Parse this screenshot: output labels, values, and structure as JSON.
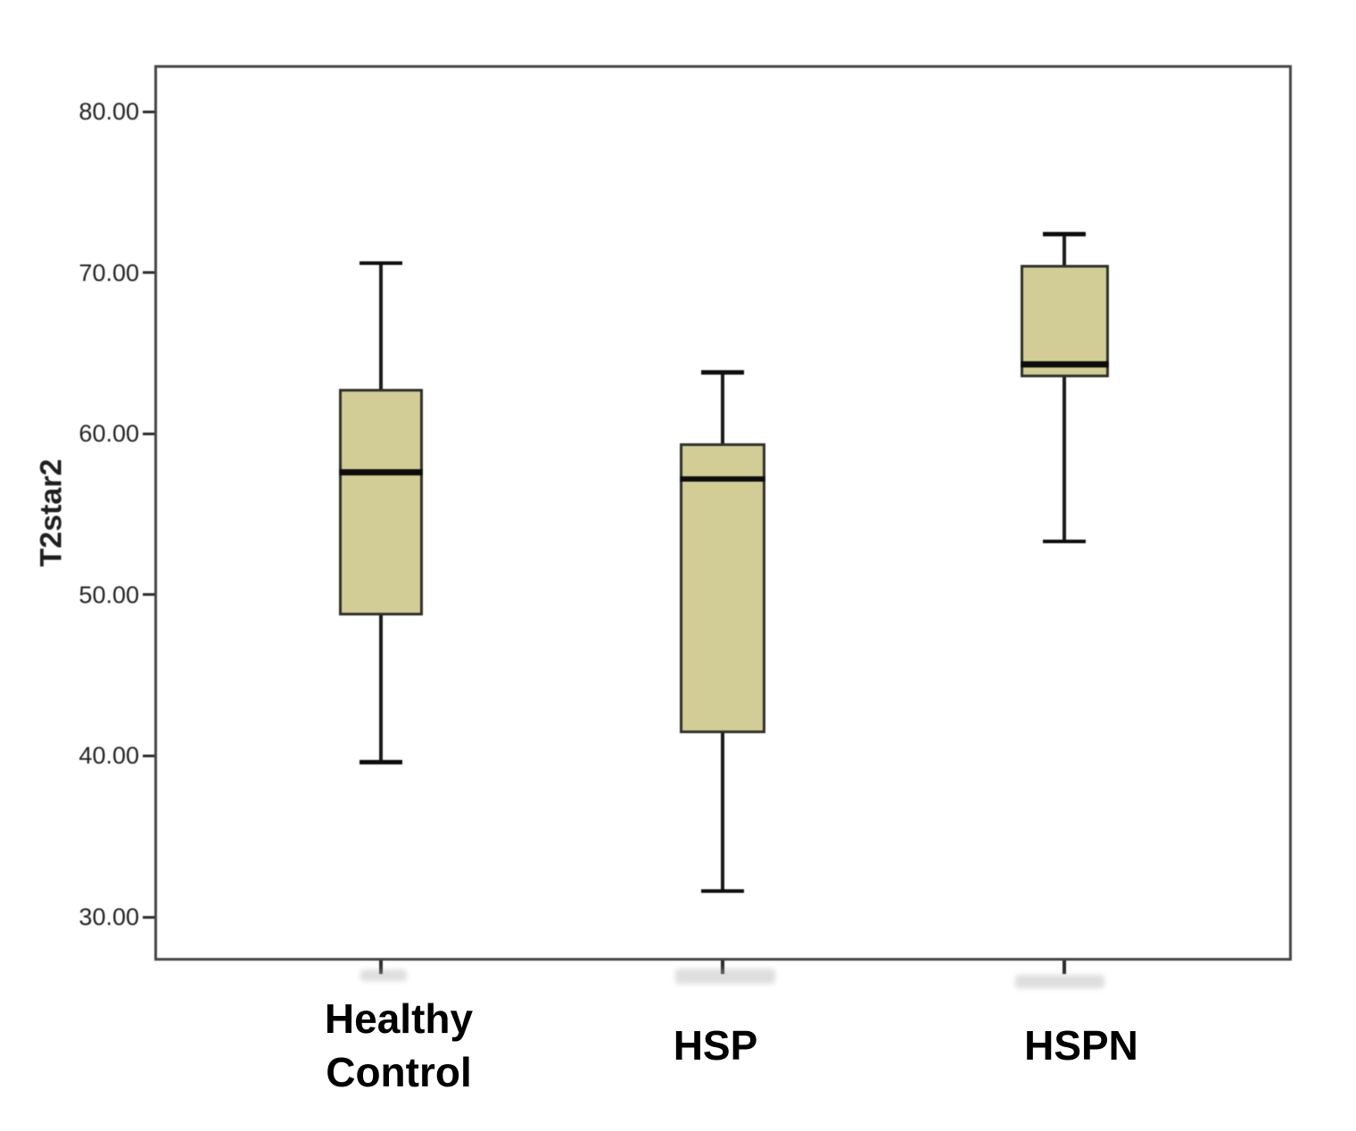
{
  "figure": {
    "background_color": "#ffffff",
    "frame_border_color": "#454545"
  },
  "chart_data": {
    "type": "boxplot",
    "title": "",
    "xlabel": "",
    "ylabel": "T2star2",
    "grid": "off",
    "legend": "none",
    "y_axis": {
      "tick_labels": [
        "80.00",
        "70.00",
        "60.00",
        "50.00",
        "40.00",
        "30.00"
      ],
      "tick_values": [
        80,
        70,
        60,
        50,
        40,
        30
      ],
      "range": [
        27.3,
        83.4
      ]
    },
    "categories": [
      "Healthy Control",
      "HSP",
      "HSPN"
    ],
    "series": [
      {
        "label_lines": [
          "Healthy",
          "Control"
        ],
        "whisker_low": 39.6,
        "q1": 48.7,
        "median": 57.6,
        "q3": 62.8,
        "whisker_high": 70.6
      },
      {
        "label_lines": [
          "HSP"
        ],
        "whisker_low": 31.6,
        "q1": 41.4,
        "median": 57.2,
        "q3": 59.4,
        "whisker_high": 63.8
      },
      {
        "label_lines": [
          "HSPN"
        ],
        "whisker_low": 53.3,
        "q1": 63.5,
        "median": 64.3,
        "q3": 70.5,
        "whisker_high": 72.4
      }
    ],
    "colors": {
      "box_fill": "#d2cc97",
      "box_border": "#30302a",
      "median": "#0d0d0d",
      "whisker": "#1a1a1a",
      "axis_text": "#222222"
    }
  }
}
